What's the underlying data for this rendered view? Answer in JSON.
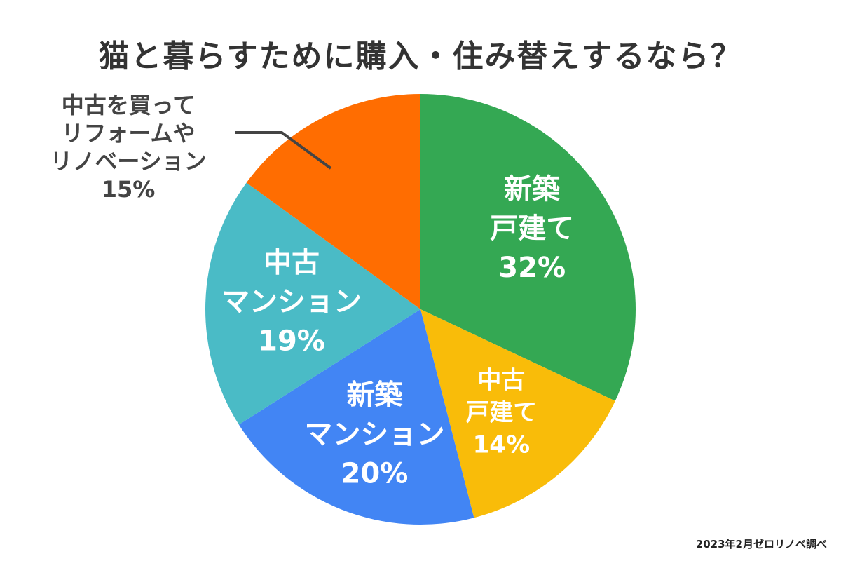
{
  "chart_data": {
    "type": "pie",
    "title": "猫と暮らすために購入・住み替えするなら？",
    "slices": [
      {
        "label_lines": [
          "新築",
          "戸建て"
        ],
        "value_text": "32%",
        "value": 32,
        "color": "#34A853",
        "label_color": "#ffffff"
      },
      {
        "label_lines": [
          "中古",
          "戸建て"
        ],
        "value_text": "14%",
        "value": 14,
        "color": "#F9BC09",
        "label_color": "#ffffff"
      },
      {
        "label_lines": [
          "新築",
          "マンション"
        ],
        "value_text": "20%",
        "value": 20,
        "color": "#4285F4",
        "label_color": "#ffffff"
      },
      {
        "label_lines": [
          "中古",
          "マンション"
        ],
        "value_text": "19%",
        "value": 19,
        "color": "#4ABBC6",
        "label_color": "#ffffff"
      },
      {
        "label_lines": [
          "中古を買って",
          "リフォームや",
          "リノベーション"
        ],
        "value_text": "15%",
        "value": 15,
        "color": "#FF6D01",
        "label_color": "#444444"
      }
    ]
  },
  "source": "2023年2月ゼロリノベ調べ"
}
